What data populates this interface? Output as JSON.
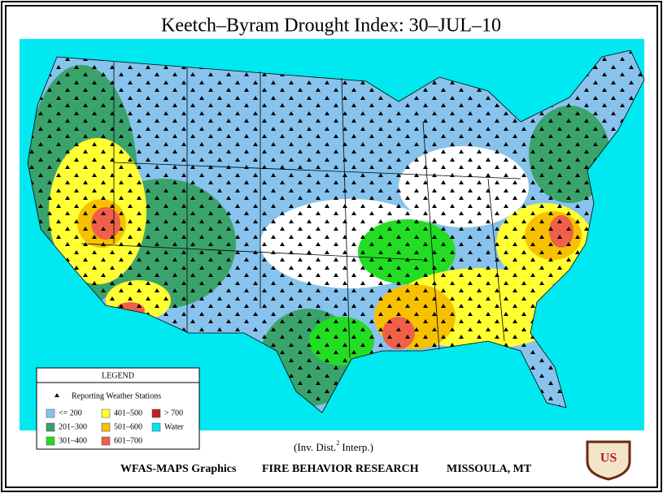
{
  "title": "Keetch–Byram Drought Index:    30–JUL–10",
  "legend": {
    "title": "LEGEND",
    "stations_label": "Reporting Weather Stations",
    "items": [
      {
        "label": "<= 200",
        "color": "#87c3ec"
      },
      {
        "label": "201–300",
        "color": "#3aa36c"
      },
      {
        "label": "301–400",
        "color": "#22dd22"
      },
      {
        "label": "401–500",
        "color": "#ffff33"
      },
      {
        "label": "501–600",
        "color": "#f7c100"
      },
      {
        "label": "601–700",
        "color": "#f06048"
      },
      {
        "label": "> 700",
        "color": "#c01e28"
      },
      {
        "label": "Water",
        "color": "#00e8f0"
      }
    ]
  },
  "note": {
    "before": "(Inv. Dist.",
    "superscript": "2",
    "after": "Interp.)"
  },
  "footer": [
    "WFAS-MAPS Graphics",
    "FIRE BEHAVIOR RESEARCH",
    "MISSOULA, MT"
  ],
  "logo": "US"
}
